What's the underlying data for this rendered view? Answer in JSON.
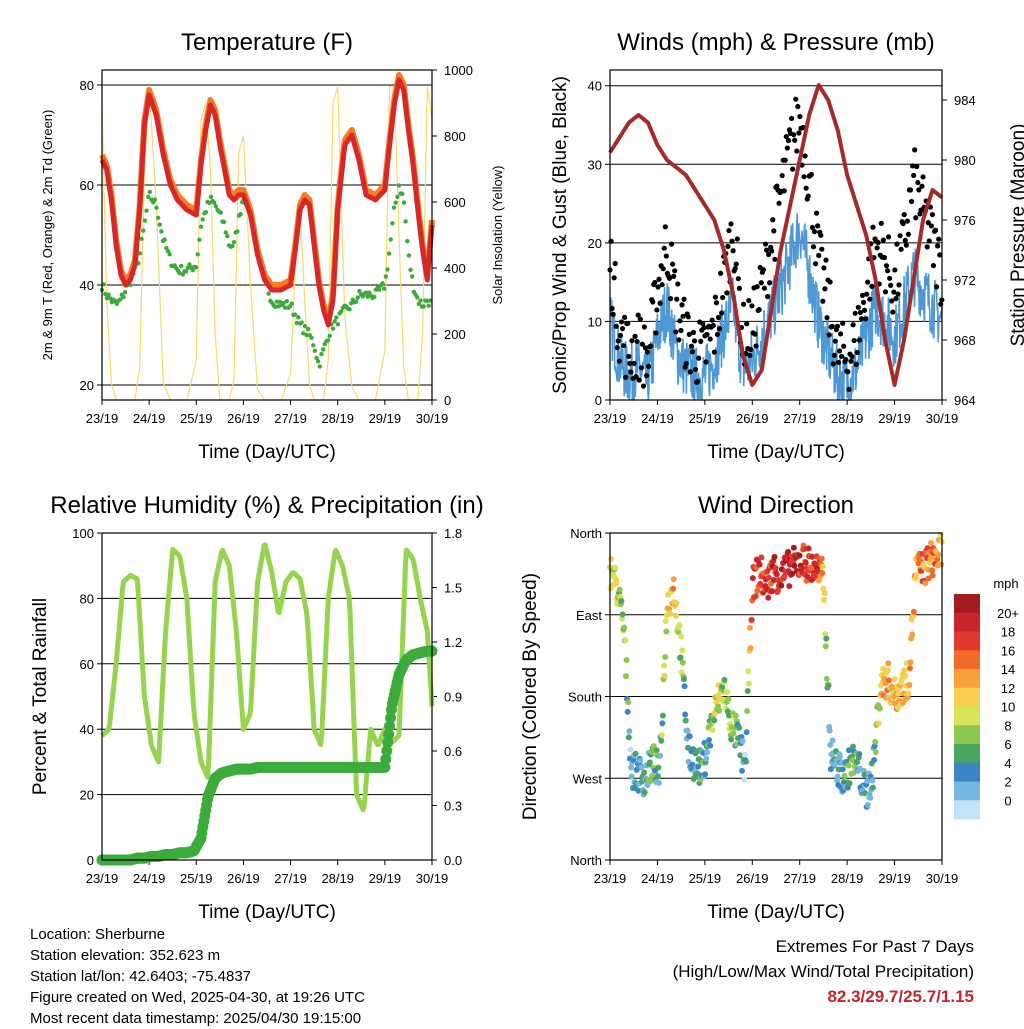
{
  "x_ticks": [
    "23/19",
    "24/19",
    "25/19",
    "26/19",
    "27/19",
    "28/19",
    "29/19",
    "30/19"
  ],
  "x_axis_label": "Time (Day/UTC)",
  "colors": {
    "temp2m": "#d62828",
    "temp9m": "#f47b20",
    "dewpoint": "#3cab3c",
    "solar": "#f5dc6a",
    "wind": "#4f98d6",
    "gust": "#000000",
    "pressure": "#a52a2a",
    "rh": "#96d44f",
    "precip": "#3cab3c",
    "grid": "#000000"
  },
  "info": {
    "location": "Location: Sherburne",
    "elevation": "Station elevation: 352.623 m",
    "latlon": "Station lat/lon: 42.6403; -75.4837",
    "created": "Figure created on Wed, 2025-04-30, at 19:26 UTC",
    "recent": "Most recent data timestamp: 2025/04/30 19:15:00"
  },
  "extremes": {
    "title": "Extremes For Past 7 Days",
    "subtitle": "(High/Low/Max Wind/Total Precipitation)",
    "values": "82.3/29.7/25.7/1.15"
  },
  "chart_data": [
    {
      "type": "line",
      "title": "Temperature (F)",
      "xlabel": "Time (Day/UTC)",
      "ylabel": "2m & 9m T (Red, Orange) & 2m Td (Green)",
      "y2label": "Solar Insolation (Yellow)",
      "ylim": [
        17,
        83
      ],
      "y2lim": [
        0,
        1000
      ],
      "yticks": [
        "20",
        "40",
        "60",
        "80"
      ],
      "y2ticks": [
        "0",
        "200",
        "400",
        "600",
        "800",
        "1000"
      ],
      "x": [
        0,
        0.1,
        0.2,
        0.3,
        0.4,
        0.5,
        0.6,
        0.7,
        0.8,
        0.9,
        1.0,
        1.15,
        1.3,
        1.45,
        1.6,
        1.8,
        2.0,
        2.1,
        2.2,
        2.3,
        2.4,
        2.5,
        2.6,
        2.7,
        2.8,
        2.9,
        3.0,
        3.15,
        3.3,
        3.45,
        3.6,
        3.8,
        4.0,
        4.1,
        4.2,
        4.3,
        4.4,
        4.5,
        4.6,
        4.7,
        4.8,
        4.9,
        5.0,
        5.15,
        5.3,
        5.45,
        5.6,
        5.8,
        6.0,
        6.1,
        6.2,
        6.3,
        6.4,
        6.5,
        6.6,
        6.7,
        6.8,
        6.9,
        7.0
      ],
      "series": [
        {
          "name": "2m T",
          "values": [
            65,
            63,
            57,
            48,
            42,
            40,
            41,
            44,
            55,
            72,
            78,
            74,
            66,
            60,
            57,
            55,
            54,
            64,
            71,
            76,
            74,
            68,
            63,
            58,
            57,
            58,
            58,
            54,
            46,
            41,
            39,
            39,
            40,
            47,
            55,
            57,
            56,
            48,
            40,
            35,
            32,
            37,
            55,
            68,
            70,
            65,
            58,
            57,
            59,
            68,
            76,
            81,
            79,
            71,
            64,
            55,
            47,
            41,
            52
          ]
        },
        {
          "name": "9m T",
          "values": [
            66,
            64,
            58,
            49,
            43,
            41,
            42,
            45,
            56,
            73,
            79,
            75,
            67,
            61,
            58,
            56,
            55,
            65,
            72,
            77,
            75,
            69,
            64,
            59,
            58,
            59,
            59,
            55,
            47,
            42,
            40,
            40,
            41,
            48,
            56,
            58,
            57,
            49,
            41,
            36,
            33,
            38,
            56,
            69,
            71,
            66,
            59,
            58,
            60,
            69,
            77,
            82,
            80,
            72,
            65,
            56,
            48,
            42,
            53
          ]
        },
        {
          "name": "2m Td",
          "values": [
            40,
            38,
            37,
            36,
            37,
            39,
            41,
            43,
            46,
            52,
            58,
            56,
            49,
            45,
            43,
            43,
            44,
            52,
            55,
            57,
            56,
            54,
            52,
            48,
            48,
            53,
            58,
            55,
            47,
            41,
            37,
            36,
            36,
            34,
            32,
            31,
            30,
            28,
            24,
            27,
            30,
            32,
            33,
            35,
            36,
            38,
            38,
            38,
            40,
            47,
            55,
            60,
            57,
            46,
            40,
            37,
            36,
            37,
            36
          ]
        },
        {
          "name": "Solar",
          "values": [
            900,
            300,
            50,
            0,
            0,
            0,
            0,
            0,
            100,
            700,
            950,
            600,
            50,
            0,
            0,
            0,
            120,
            850,
            900,
            700,
            200,
            0,
            0,
            0,
            60,
            750,
            800,
            350,
            30,
            0,
            0,
            0,
            80,
            400,
            600,
            300,
            50,
            0,
            0,
            0,
            120,
            900,
            950,
            250,
            40,
            0,
            0,
            0,
            150,
            950,
            950,
            500,
            100,
            0,
            0,
            0,
            200,
            950,
            850
          ]
        }
      ]
    },
    {
      "type": "scatter",
      "title": "Winds (mph) & Pressure (mb)",
      "xlabel": "Time (Day/UTC)",
      "ylabel": "Sonic/Prop Wind & Gust (Blue, Black)",
      "y2label": "Station Pressure (Maroon)",
      "ylim": [
        0,
        42
      ],
      "y2lim": [
        964,
        986
      ],
      "yticks": [
        "0",
        "10",
        "20",
        "30",
        "40"
      ],
      "y2ticks": [
        "964",
        "968",
        "972",
        "976",
        "980",
        "984"
      ],
      "x": [
        0,
        0.2,
        0.4,
        0.6,
        0.8,
        1.0,
        1.2,
        1.4,
        1.6,
        1.8,
        2.0,
        2.2,
        2.4,
        2.6,
        2.8,
        3.0,
        3.2,
        3.4,
        3.6,
        3.8,
        4.0,
        4.2,
        4.4,
        4.6,
        4.8,
        5.0,
        5.2,
        5.4,
        5.6,
        5.8,
        6.0,
        6.2,
        6.4,
        6.6,
        6.8,
        7.0
      ],
      "series": [
        {
          "name": "Wind",
          "values": [
            10,
            5,
            3,
            4,
            2,
            8,
            12,
            6,
            4,
            3,
            3,
            5,
            9,
            12,
            4,
            5,
            8,
            11,
            14,
            18,
            22,
            16,
            10,
            6,
            3,
            2,
            4,
            8,
            12,
            10,
            8,
            12,
            16,
            14,
            12,
            10
          ]
        },
        {
          "name": "Gust",
          "values": [
            18,
            9,
            6,
            7,
            5,
            14,
            20,
            12,
            8,
            6,
            6,
            9,
            15,
            22,
            8,
            9,
            14,
            20,
            26,
            32,
            36,
            28,
            18,
            12,
            6,
            5,
            8,
            14,
            20,
            18,
            14,
            20,
            28,
            24,
            20,
            16
          ]
        },
        {
          "name": "Pressure",
          "values": [
            980.5,
            981.5,
            982.5,
            983,
            982.5,
            981,
            980,
            979.5,
            979,
            978,
            977,
            976,
            974,
            971,
            967,
            965,
            966,
            970,
            974,
            977,
            980,
            983,
            985,
            984,
            982,
            979,
            977,
            975,
            972,
            968,
            965,
            968,
            972,
            976,
            978,
            977.5
          ]
        }
      ]
    },
    {
      "type": "line",
      "title": "Relative Humidity (%) & Precipitation (in)",
      "xlabel": "Time (Day/UTC)",
      "ylabel": "Percent & Total Rainfall",
      "ylim": [
        0,
        100
      ],
      "y2lim": [
        0,
        1.8
      ],
      "yticks": [
        "0",
        "20",
        "40",
        "60",
        "80",
        "100"
      ],
      "y2ticks": [
        "0.0",
        "0.3",
        "0.6",
        "0.9",
        "1.2",
        "1.5",
        "1.8"
      ],
      "x": [
        0,
        0.15,
        0.3,
        0.45,
        0.6,
        0.75,
        0.9,
        1.05,
        1.2,
        1.35,
        1.5,
        1.65,
        1.8,
        1.95,
        2.1,
        2.25,
        2.4,
        2.55,
        2.7,
        2.85,
        3.0,
        3.15,
        3.3,
        3.45,
        3.6,
        3.75,
        3.9,
        4.05,
        4.2,
        4.35,
        4.5,
        4.65,
        4.8,
        4.95,
        5.1,
        5.25,
        5.4,
        5.55,
        5.7,
        5.85,
        6.0,
        6.15,
        6.3,
        6.45,
        6.6,
        6.75,
        6.9,
        7.0
      ],
      "series": [
        {
          "name": "RH",
          "values": [
            38,
            40,
            60,
            85,
            87,
            86,
            50,
            35,
            30,
            70,
            95,
            93,
            80,
            45,
            30,
            25,
            85,
            95,
            90,
            70,
            40,
            45,
            85,
            97,
            88,
            75,
            85,
            88,
            86,
            75,
            40,
            35,
            80,
            95,
            90,
            80,
            20,
            15,
            40,
            35,
            40,
            36,
            38,
            95,
            92,
            80,
            70,
            47
          ]
        },
        {
          "name": "Precip",
          "values": [
            0,
            0,
            0,
            0,
            0,
            0.01,
            0.01,
            0.02,
            0.02,
            0.03,
            0.03,
            0.04,
            0.04,
            0.05,
            0.12,
            0.35,
            0.45,
            0.48,
            0.49,
            0.5,
            0.5,
            0.5,
            0.51,
            0.51,
            0.51,
            0.51,
            0.51,
            0.51,
            0.51,
            0.51,
            0.51,
            0.51,
            0.51,
            0.51,
            0.51,
            0.51,
            0.51,
            0.51,
            0.51,
            0.51,
            0.51,
            0.85,
            1.02,
            1.1,
            1.13,
            1.14,
            1.15,
            1.15
          ]
        }
      ]
    },
    {
      "type": "scatter",
      "title": "Wind Direction",
      "xlabel": "Time (Day/UTC)",
      "ylabel": "Direction (Colored By Speed)",
      "ylim": [
        0,
        360
      ],
      "yticks": [
        "North",
        "East",
        "South",
        "West",
        "North"
      ],
      "colorbar": {
        "title": "mph",
        "labels": [
          "20+",
          "18",
          "16",
          "14",
          "12",
          "10",
          "8",
          "6",
          "4",
          "2",
          "0"
        ],
        "colors": [
          "#a31c20",
          "#c7252a",
          "#e1382f",
          "#f26a2b",
          "#f6a03c",
          "#f6cf4e",
          "#d7e35a",
          "#8cc850",
          "#4aa563",
          "#3b86c4",
          "#76b7e0",
          "#c0e3f5"
        ]
      },
      "x": [
        0,
        0.15,
        0.3,
        0.45,
        0.6,
        0.75,
        0.9,
        1.05,
        1.2,
        1.35,
        1.5,
        1.65,
        1.8,
        1.95,
        2.1,
        2.25,
        2.4,
        2.55,
        2.7,
        2.85,
        3.0,
        3.15,
        3.3,
        3.45,
        3.6,
        3.75,
        3.9,
        4.05,
        4.2,
        4.35,
        4.5,
        4.65,
        4.8,
        4.95,
        5.1,
        5.25,
        5.4,
        5.55,
        5.7,
        5.85,
        6.0,
        6.15,
        6.3,
        6.45,
        6.6,
        6.75,
        6.9,
        7.0
      ],
      "directions": [
        320,
        300,
        250,
        100,
        95,
        90,
        110,
        95,
        280,
        300,
        230,
        120,
        105,
        100,
        140,
        170,
        190,
        150,
        135,
        100,
        300,
        320,
        300,
        320,
        310,
        320,
        325,
        330,
        325,
        320,
        310,
        120,
        100,
        90,
        110,
        100,
        70,
        100,
        190,
        200,
        180,
        190,
        200,
        320,
        320,
        330,
        335,
        340
      ],
      "speeds": [
        12,
        9,
        8,
        3,
        4,
        4,
        6,
        4,
        12,
        13,
        8,
        4,
        5,
        4,
        6,
        10,
        8,
        7,
        6,
        3,
        16,
        18,
        18,
        19,
        19,
        20,
        20,
        19,
        18,
        19,
        14,
        3,
        4,
        5,
        6,
        4,
        2,
        4,
        12,
        14,
        12,
        13,
        12,
        14,
        15,
        15,
        14,
        12
      ]
    }
  ]
}
